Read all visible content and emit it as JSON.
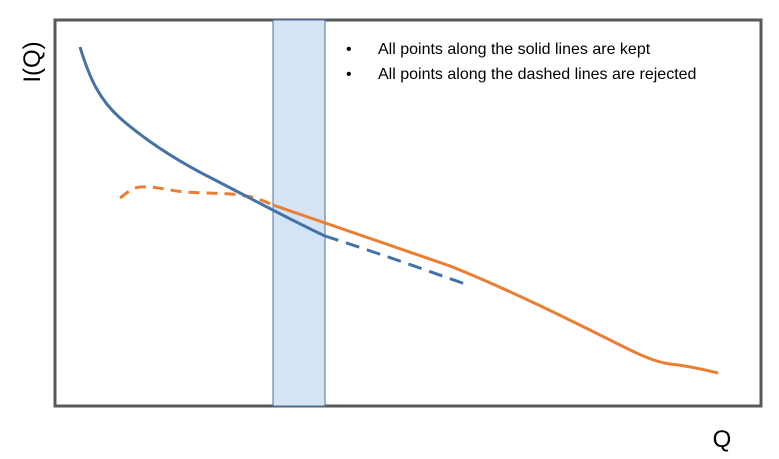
{
  "labels": {
    "y_axis": "I(Q)",
    "x_axis": "Q"
  },
  "legend": {
    "bullet_symbol": "•",
    "items": [
      {
        "text": "All points along the solid lines are kept"
      },
      {
        "text": "All points along the dashed lines are rejected"
      }
    ]
  },
  "colors": {
    "blue_curve": "#4472a8",
    "orange_curve": "#ed7d31",
    "overlap_fill": "#d5e4f4",
    "overlap_stroke": "#4472a8",
    "frame_stroke": "#595959"
  }
}
